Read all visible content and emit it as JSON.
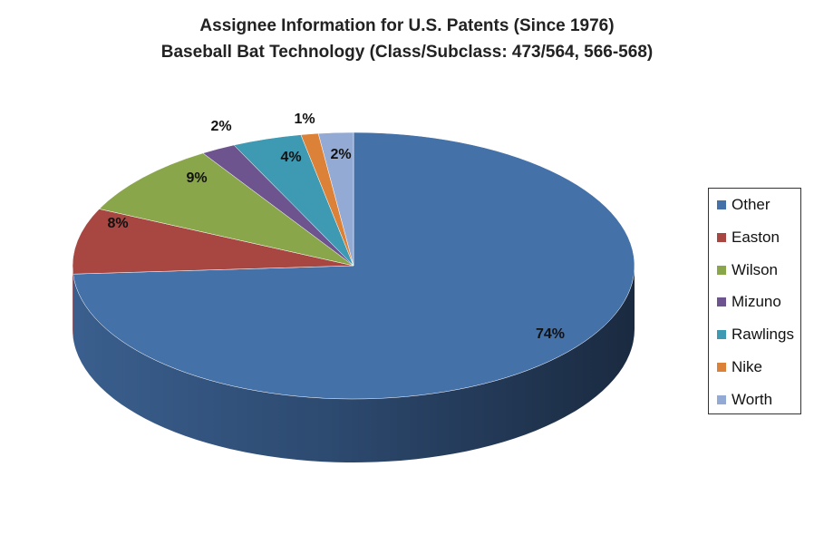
{
  "chart_data": {
    "type": "pie",
    "title": "Assignee Information for U.S. Patents (Since 1976)",
    "subtitle": "Baseball Bat Technology (Class/Subclass: 473/564, 566-568)",
    "style": "3d",
    "legend_placement": "right",
    "categories": [
      "Other",
      "Easton",
      "Wilson",
      "Mizuno",
      "Rawlings",
      "Nike",
      "Worth"
    ],
    "values": [
      74,
      8,
      9,
      2,
      4,
      1,
      2
    ],
    "data_labels": [
      "74%",
      "8%",
      "9%",
      "2%",
      "4%",
      "1%",
      "2%"
    ],
    "colors": [
      "#4571a9",
      "#a84642",
      "#8aa64b",
      "#6e548f",
      "#3e9ab2",
      "#dc8238",
      "#93aad4"
    ]
  }
}
